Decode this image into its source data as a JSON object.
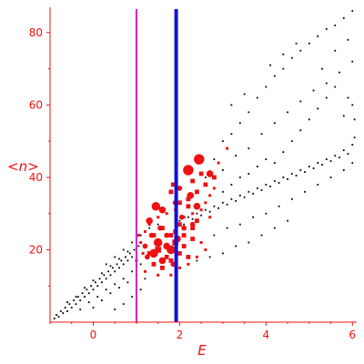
{
  "chart_data": {
    "type": "scatter",
    "title": "",
    "xlabel": "E",
    "ylabel": "<n>",
    "xlim": [
      -1,
      6.1
    ],
    "ylim": [
      0,
      87
    ],
    "x_ticks": [
      0,
      2,
      4,
      6
    ],
    "y_ticks": [
      20,
      40,
      60,
      80
    ],
    "grid": false,
    "colors": {
      "axis": "#ee1111",
      "background_points": "#000000",
      "highlight_points": "#ee1111",
      "line_magenta": "#cc22cc",
      "line_blue": "#1111dd"
    },
    "vertical_lines": [
      {
        "x": 1.0,
        "color": "#cc22cc"
      },
      {
        "x": 1.92,
        "color": "#1111dd"
      }
    ],
    "series": [
      {
        "color": "#000000",
        "marker": "dot",
        "points": [
          [
            -0.9,
            1
          ],
          [
            -0.85,
            2
          ],
          [
            -0.8,
            1.5
          ],
          [
            -0.75,
            3
          ],
          [
            -0.7,
            2.5
          ],
          [
            -0.65,
            4
          ],
          [
            -0.6,
            3
          ],
          [
            -0.55,
            5
          ],
          [
            -0.5,
            4
          ],
          [
            -0.45,
            6
          ],
          [
            -0.4,
            5
          ],
          [
            -0.35,
            7
          ],
          [
            -0.3,
            6
          ],
          [
            -0.25,
            8
          ],
          [
            -0.2,
            7
          ],
          [
            -0.15,
            9
          ],
          [
            -0.1,
            8
          ],
          [
            -0.05,
            10
          ],
          [
            0.0,
            9
          ],
          [
            0.05,
            11
          ],
          [
            0.1,
            10
          ],
          [
            0.15,
            12
          ],
          [
            0.2,
            11
          ],
          [
            0.25,
            13
          ],
          [
            0.3,
            12
          ],
          [
            0.35,
            14
          ],
          [
            0.4,
            13
          ],
          [
            0.45,
            15
          ],
          [
            0.5,
            14
          ],
          [
            0.55,
            16
          ],
          [
            0.6,
            15
          ],
          [
            0.65,
            17
          ],
          [
            0.7,
            16
          ],
          [
            0.75,
            18
          ],
          [
            0.8,
            17
          ],
          [
            0.85,
            19
          ],
          [
            0.9,
            18
          ],
          [
            0.95,
            20
          ],
          [
            1.0,
            19
          ],
          [
            1.05,
            21
          ],
          [
            -0.6,
            5.5
          ],
          [
            -0.4,
            7
          ],
          [
            -0.2,
            9.5
          ],
          [
            0.0,
            11.5
          ],
          [
            0.2,
            13.5
          ],
          [
            0.4,
            15.5
          ],
          [
            0.6,
            17.5
          ],
          [
            0.8,
            19.5
          ],
          [
            -0.3,
            3.5
          ],
          [
            -0.1,
            5.5
          ],
          [
            0.1,
            7
          ],
          [
            0.3,
            9
          ],
          [
            0.5,
            10.5
          ],
          [
            0.7,
            12
          ],
          [
            0.9,
            14
          ],
          [
            1.1,
            16
          ],
          [
            0.0,
            4
          ],
          [
            0.2,
            6
          ],
          [
            0.4,
            8
          ],
          [
            0.6,
            9.5
          ],
          [
            0.8,
            11
          ],
          [
            1.0,
            13
          ],
          [
            0.3,
            16
          ],
          [
            0.5,
            18
          ],
          [
            0.7,
            20
          ],
          [
            0.9,
            22
          ],
          [
            1.1,
            24
          ],
          [
            1.3,
            26
          ],
          [
            1.5,
            27
          ],
          [
            0.5,
            3.5
          ],
          [
            0.7,
            5
          ],
          [
            0.9,
            7
          ],
          [
            1.1,
            9
          ],
          [
            1.2,
            12
          ],
          [
            2.0,
            28
          ],
          [
            2.2,
            29
          ],
          [
            2.4,
            30
          ],
          [
            2.6,
            31
          ],
          [
            2.8,
            32
          ],
          [
            3.0,
            33
          ],
          [
            3.2,
            34
          ],
          [
            3.4,
            35
          ],
          [
            3.6,
            36
          ],
          [
            3.8,
            37
          ],
          [
            4.0,
            38
          ],
          [
            4.2,
            39
          ],
          [
            4.4,
            40
          ],
          [
            4.6,
            41
          ],
          [
            4.8,
            42
          ],
          [
            5.0,
            43
          ],
          [
            5.2,
            44
          ],
          [
            5.4,
            45
          ],
          [
            5.6,
            46
          ],
          [
            5.8,
            47.5
          ],
          [
            6.0,
            49
          ],
          [
            6.05,
            51
          ],
          [
            2.1,
            27
          ],
          [
            2.3,
            28.5
          ],
          [
            2.5,
            29.5
          ],
          [
            2.7,
            30.5
          ],
          [
            2.9,
            31.5
          ],
          [
            3.1,
            32.5
          ],
          [
            3.3,
            33.5
          ],
          [
            3.5,
            34.5
          ],
          [
            3.7,
            35.5
          ],
          [
            3.9,
            36.5
          ],
          [
            4.1,
            37.5
          ],
          [
            4.3,
            38.5
          ],
          [
            4.5,
            39.5
          ],
          [
            4.7,
            40.5
          ],
          [
            4.9,
            41.5
          ],
          [
            5.1,
            42.5
          ],
          [
            5.3,
            43.5
          ],
          [
            5.5,
            44.5
          ],
          [
            5.7,
            45.5
          ],
          [
            5.9,
            46.5
          ],
          [
            2.6,
            40
          ],
          [
            2.8,
            45
          ],
          [
            3.0,
            50
          ],
          [
            3.2,
            52
          ],
          [
            3.4,
            55
          ],
          [
            3.6,
            58
          ],
          [
            3.8,
            62
          ],
          [
            4.0,
            65
          ],
          [
            4.2,
            68
          ],
          [
            4.4,
            70
          ],
          [
            4.6,
            73
          ],
          [
            4.8,
            75
          ],
          [
            5.0,
            77
          ],
          [
            5.2,
            79
          ],
          [
            5.4,
            81
          ],
          [
            5.6,
            82
          ],
          [
            5.8,
            84
          ],
          [
            6.0,
            86
          ],
          [
            3.0,
            42
          ],
          [
            3.3,
            46
          ],
          [
            3.6,
            48
          ],
          [
            3.9,
            52
          ],
          [
            4.2,
            55
          ],
          [
            4.5,
            58
          ],
          [
            4.8,
            61
          ],
          [
            5.1,
            64
          ],
          [
            5.4,
            66
          ],
          [
            5.7,
            69
          ],
          [
            6.0,
            72
          ],
          [
            2.5,
            22
          ],
          [
            2.8,
            24
          ],
          [
            3.1,
            26
          ],
          [
            3.4,
            27
          ],
          [
            3.7,
            29
          ],
          [
            4.0,
            30
          ],
          [
            4.3,
            32
          ],
          [
            4.6,
            34
          ],
          [
            4.9,
            36
          ],
          [
            5.2,
            38
          ],
          [
            5.5,
            40
          ],
          [
            5.8,
            42
          ],
          [
            6.0,
            44
          ],
          [
            2.4,
            17
          ],
          [
            2.7,
            18
          ],
          [
            3.0,
            19
          ],
          [
            3.3,
            21
          ],
          [
            3.6,
            22
          ],
          [
            3.9,
            24
          ],
          [
            4.2,
            26
          ],
          [
            4.5,
            28
          ],
          [
            3.2,
            60
          ],
          [
            3.5,
            63
          ],
          [
            4.1,
            71
          ],
          [
            4.4,
            74
          ],
          [
            4.7,
            77
          ],
          [
            5.3,
            70
          ],
          [
            5.6,
            75
          ],
          [
            5.9,
            78
          ],
          [
            4.2,
            44
          ],
          [
            4.4,
            47
          ],
          [
            4.6,
            50
          ],
          [
            4.8,
            53
          ],
          [
            5.0,
            56
          ],
          [
            5.2,
            59
          ],
          [
            5.4,
            62
          ],
          [
            5.6,
            65
          ],
          [
            5.8,
            57
          ],
          [
            6.0,
            60
          ],
          [
            5.9,
            62
          ],
          [
            6.05,
            56
          ],
          [
            3.0,
            36
          ],
          [
            3.2,
            38
          ],
          [
            3.4,
            40
          ],
          [
            3.6,
            41
          ],
          [
            3.8,
            43
          ],
          [
            4.0,
            45
          ]
        ]
      },
      {
        "color": "#ee1111",
        "marker": "square",
        "points": [
          [
            1.2,
            25,
            1
          ],
          [
            1.3,
            27,
            1
          ],
          [
            1.4,
            24,
            2
          ],
          [
            1.5,
            29,
            1
          ],
          [
            1.6,
            26,
            2
          ],
          [
            1.7,
            30,
            1
          ],
          [
            1.8,
            24,
            2
          ],
          [
            1.9,
            31,
            1
          ],
          [
            2.0,
            27,
            2
          ],
          [
            2.1,
            29,
            1
          ],
          [
            2.2,
            32,
            2
          ],
          [
            2.3,
            30,
            1
          ],
          [
            2.4,
            28,
            2
          ],
          [
            2.5,
            31,
            1
          ],
          [
            2.6,
            33,
            1
          ],
          [
            2.7,
            29,
            1
          ],
          [
            1.3,
            19,
            2
          ],
          [
            1.5,
            20,
            3
          ],
          [
            1.7,
            18,
            2
          ],
          [
            1.9,
            22,
            3
          ],
          [
            2.1,
            21,
            2
          ],
          [
            2.3,
            23,
            2
          ],
          [
            2.5,
            22,
            1
          ],
          [
            1.4,
            16,
            2
          ],
          [
            1.6,
            15,
            2
          ],
          [
            1.8,
            17,
            2
          ],
          [
            2.0,
            19,
            2
          ],
          [
            2.2,
            18,
            2
          ],
          [
            1.2,
            14,
            1
          ],
          [
            1.5,
            13,
            1
          ],
          [
            1.8,
            13,
            1
          ],
          [
            2.0,
            15,
            1
          ],
          [
            2.2,
            16,
            1
          ],
          [
            2.4,
            18,
            1
          ],
          [
            2.6,
            20,
            1
          ],
          [
            1.9,
            25,
            2
          ],
          [
            2.1,
            24,
            2
          ],
          [
            2.3,
            26,
            2
          ],
          [
            2.0,
            33,
            2
          ],
          [
            2.2,
            34,
            2
          ],
          [
            2.4,
            36,
            2
          ],
          [
            2.6,
            38,
            2
          ],
          [
            1.8,
            36,
            2
          ],
          [
            1.85,
            38,
            2
          ],
          [
            2.3,
            39,
            2
          ],
          [
            2.5,
            41,
            2
          ],
          [
            2.8,
            40,
            2
          ],
          [
            2.9,
            44,
            1
          ],
          [
            3.1,
            48,
            1
          ],
          [
            1.1,
            22,
            1
          ],
          [
            1.15,
            19,
            1
          ],
          [
            1.0,
            17,
            1
          ],
          [
            1.05,
            24,
            1
          ],
          [
            2.7,
            35,
            1
          ],
          [
            2.8,
            37,
            1
          ]
        ]
      },
      {
        "color": "#ee1111",
        "marker": "circle",
        "points": [
          [
            2.45,
            45,
            6
          ],
          [
            2.2,
            42,
            6
          ],
          [
            2.7,
            41,
            4
          ],
          [
            1.45,
            32,
            5
          ],
          [
            1.6,
            31,
            4
          ],
          [
            1.3,
            28,
            4
          ],
          [
            2.25,
            35,
            4
          ],
          [
            1.5,
            22,
            5
          ],
          [
            1.7,
            21,
            4
          ],
          [
            1.4,
            19,
            5
          ],
          [
            1.6,
            17,
            4
          ],
          [
            1.8,
            20,
            5
          ],
          [
            1.95,
            23,
            4
          ],
          [
            2.1,
            26,
            3
          ],
          [
            2.4,
            32,
            4
          ],
          [
            2.0,
            37,
            3
          ],
          [
            1.35,
            24,
            3
          ],
          [
            1.85,
            16,
            3
          ],
          [
            2.3,
            27,
            3
          ],
          [
            1.55,
            26,
            3
          ],
          [
            1.25,
            18,
            3
          ],
          [
            2.05,
            29,
            3
          ],
          [
            1.7,
            24,
            3
          ],
          [
            1.9,
            33,
            3
          ],
          [
            1.2,
            21,
            3
          ]
        ]
      }
    ]
  }
}
